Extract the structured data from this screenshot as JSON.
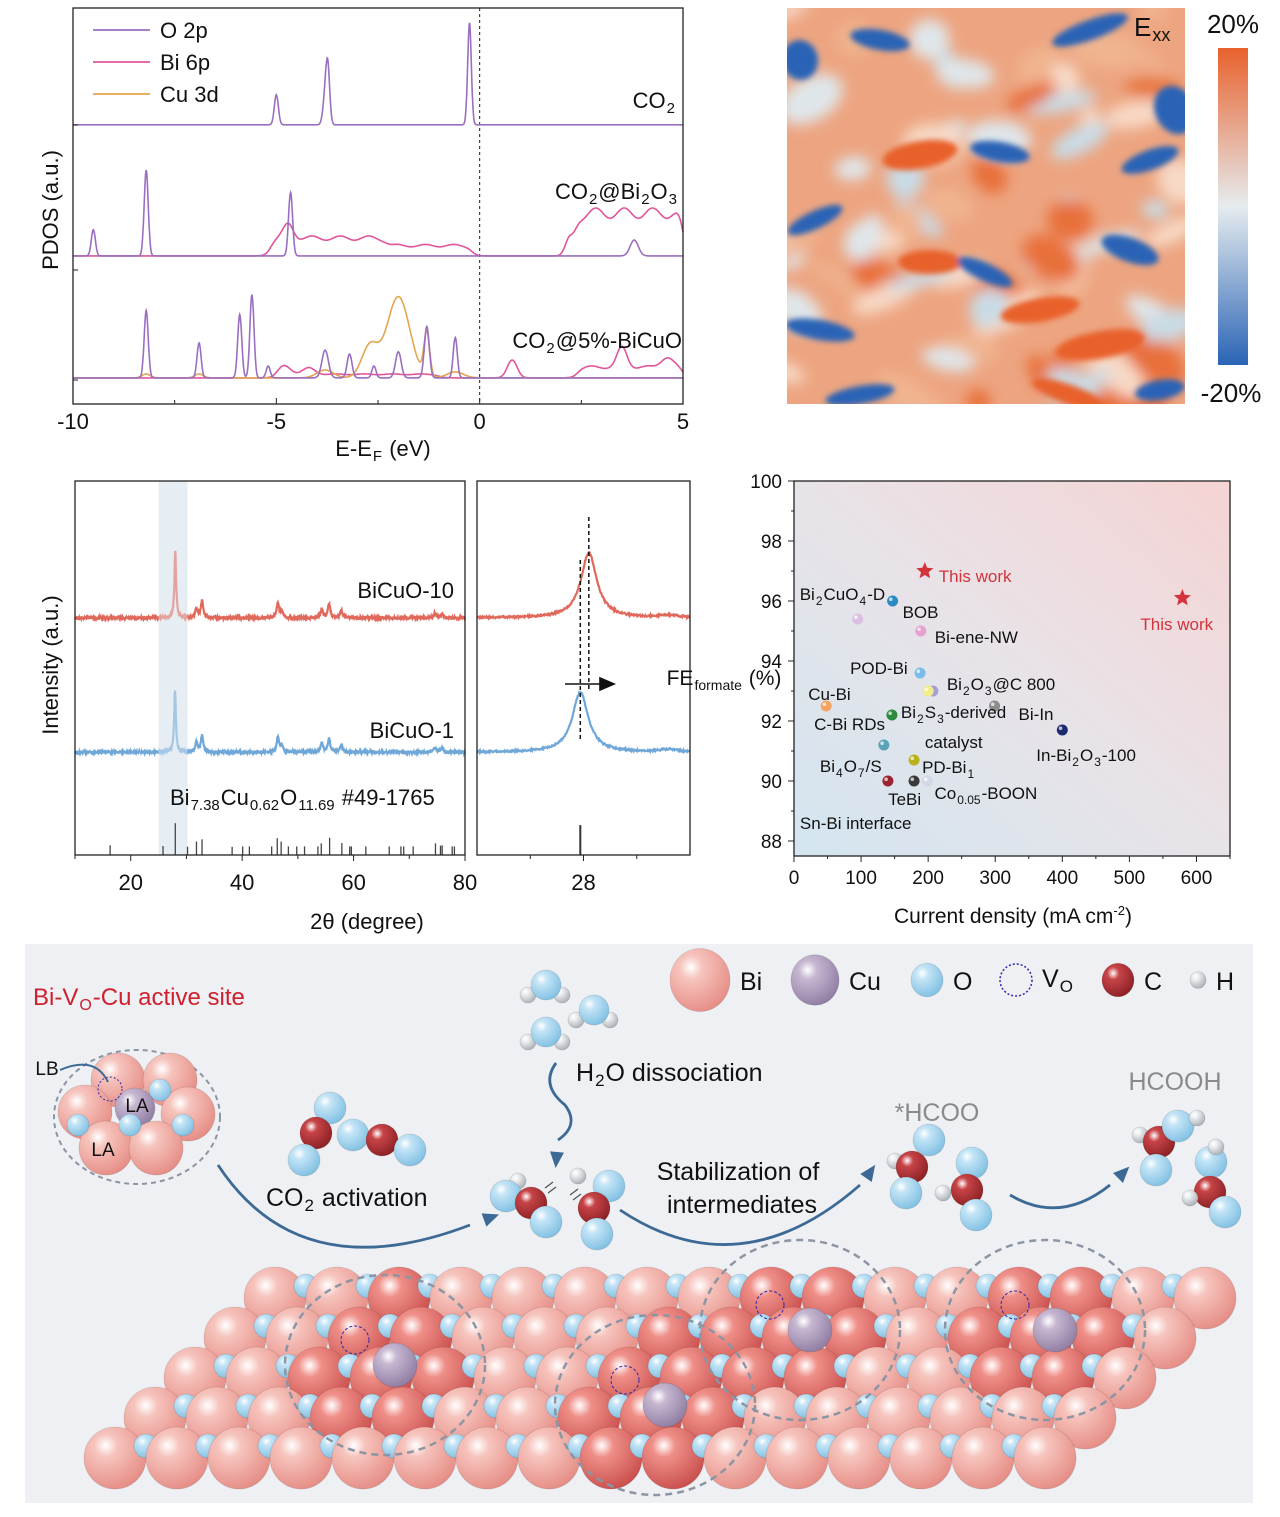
{
  "chart_data": [
    {
      "id": "pdos",
      "type": "line",
      "xlabel": "E-E",
      "xlabel_sub": "F",
      "xlabel_unit": " (eV)",
      "ylabel": "PDOS (a.u.)",
      "xlim": [
        -10,
        5
      ],
      "ylim": [
        0,
        100
      ],
      "xticks": [
        -10,
        -5,
        0,
        5
      ],
      "fermi_line_at": 0,
      "legend_position": "top-left",
      "legend": [
        {
          "name": "O 2p",
          "color": "#9b6fc0"
        },
        {
          "name": "Bi 6p",
          "color": "#e0569a"
        },
        {
          "name": "Cu 3d",
          "color": "#e3a64f"
        }
      ],
      "panels": [
        {
          "label": "CO",
          "label_parts": [
            "CO",
            "2"
          ],
          "offset": 70.5,
          "series": [
            {
              "name": "O 2p",
              "peaks": [
                [
                  -5.0,
                  7.6,
                  0.05
                ],
                [
                  -3.82,
                  4.3,
                  0.05
                ],
                [
                  -3.74,
                  15.6,
                  0.05
                ],
                [
                  -0.25,
                  25.8,
                  0.045
                ]
              ],
              "bands": []
            }
          ]
        },
        {
          "label": "CO2@Bi2O3",
          "label_parts": [
            "CO",
            "2",
            "@Bi",
            "2",
            "O",
            "3"
          ],
          "offset": 37.4,
          "series": [
            {
              "name": "Bi 6p",
              "peaks": [
                [
                  -4.7,
                  3.5,
                  0.12
                ],
                [
                  2.2,
                  4,
                  0.1
                ]
              ],
              "bands": [
                [
                  -5.15,
                  -2.3,
                  4.5
                ],
                [
                  -2.3,
                  -0.2,
                  2.6
                ],
                [
                  2.35,
                  5,
                  10.8
                ]
              ]
            },
            {
              "name": "O 2p",
              "peaks": [
                [
                  -9.5,
                  6.6,
                  0.05
                ],
                [
                  -8.2,
                  21.7,
                  0.05
                ],
                [
                  -4.65,
                  16,
                  0.05
                ],
                [
                  3.8,
                  4,
                  0.1
                ]
              ],
              "bands": []
            }
          ]
        },
        {
          "label": "CO2@5%-BiCuO",
          "label_parts": [
            "CO",
            "2",
            "@5%-BiCuO"
          ],
          "offset": 6.6,
          "series": [
            {
              "name": "Bi 6p",
              "peaks": [
                [
                  -4.8,
                  2.2,
                  0.15
                ],
                [
                  -4.2,
                  1.6,
                  0.15
                ],
                [
                  0.8,
                  4.5,
                  0.12
                ],
                [
                  3.5,
                  5,
                  0.12
                ],
                [
                  4.6,
                  2.5,
                  0.15
                ]
              ],
              "bands": [
                [
                  -5,
                  -1,
                  0.9
                ],
                [
                  2.4,
                  5,
                  2.7
                ]
              ]
            },
            {
              "name": "Cu 3d",
              "peaks": [
                [
                  -2.0,
                  20.5,
                  0.28
                ],
                [
                  -2.7,
                  8,
                  0.2
                ],
                [
                  -1.3,
                  11,
                  0.07
                ],
                [
                  -3.8,
                  2,
                  0.2
                ],
                [
                  -8.2,
                  1,
                  0.1
                ],
                [
                  -6.9,
                  1,
                  0.1
                ],
                [
                  -0.6,
                  1.5,
                  0.2
                ]
              ],
              "bands": []
            },
            {
              "name": "O 2p",
              "peaks": [
                [
                  -8.2,
                  17,
                  0.05
                ],
                [
                  -6.9,
                  8.8,
                  0.05
                ],
                [
                  -5.9,
                  16,
                  0.05
                ],
                [
                  -5.6,
                  21,
                  0.05
                ],
                [
                  -5.2,
                  3,
                  0.05
                ],
                [
                  -3.8,
                  7,
                  0.08
                ],
                [
                  -3.2,
                  6,
                  0.06
                ],
                [
                  -2.6,
                  3,
                  0.05
                ],
                [
                  -2.0,
                  6.6,
                  0.07
                ],
                [
                  -1.3,
                  13,
                  0.06
                ],
                [
                  -0.6,
                  10.2,
                  0.05
                ]
              ],
              "bands": []
            }
          ]
        }
      ]
    },
    {
      "id": "strain-map",
      "type": "heatmap",
      "label": "E",
      "label_sub": "xx",
      "colorbar": {
        "min_label": "-20%",
        "max_label": "20%",
        "min_color": "#2a64b5",
        "mid_color": "#e6ecef",
        "max_color": "#e8612c"
      }
    },
    {
      "id": "xrd",
      "type": "line",
      "xlabel": "2θ (degree)",
      "ylabel": "Intensity (a.u.)",
      "xlim": [
        10,
        80
      ],
      "ylim": [
        0,
        100
      ],
      "xticks": [
        20,
        40,
        60,
        80
      ],
      "highlight_range": [
        25,
        30.2
      ],
      "series": [
        {
          "name": "BiCuO-10",
          "color": "#e0695b",
          "offset": 63.4,
          "peaks": [
            [
              28.0,
              17.9
            ],
            [
              31.8,
              2.6
            ],
            [
              32.8,
              4.5
            ],
            [
              46.4,
              4
            ],
            [
              47.1,
              1.8
            ],
            [
              54.3,
              2.4
            ],
            [
              55.6,
              3.8
            ],
            [
              57.8,
              2
            ],
            [
              74.6,
              1.3
            ],
            [
              75.9,
              1
            ]
          ]
        },
        {
          "name": "BiCuO-1",
          "color": "#6fa8d8",
          "offset": 27.5,
          "peaks": [
            [
              27.95,
              16.6
            ],
            [
              31.8,
              2.6
            ],
            [
              32.8,
              4.5
            ],
            [
              46.4,
              4
            ],
            [
              47.1,
              1.8
            ],
            [
              54.3,
              2.4
            ],
            [
              55.6,
              3.8
            ],
            [
              57.8,
              2
            ],
            [
              74.6,
              1.3
            ],
            [
              75.9,
              1
            ]
          ]
        }
      ],
      "reference": {
        "label_parts": [
          "Bi",
          "7.38",
          "Cu",
          "0.62",
          "O",
          "11.69",
          " #49-1765"
        ],
        "sticks": [
          [
            16.3,
            2.6
          ],
          [
            25.8,
            2.4
          ],
          [
            28.0,
            8.5
          ],
          [
            30.2,
            2.2
          ],
          [
            31.8,
            3.6
          ],
          [
            32.8,
            4.2
          ],
          [
            38.2,
            2.2
          ],
          [
            40.1,
            2.3
          ],
          [
            41.3,
            2.3
          ],
          [
            45.3,
            2.3
          ],
          [
            46.3,
            4.5
          ],
          [
            47.0,
            3.6
          ],
          [
            48.3,
            2.3
          ],
          [
            49.8,
            2.3
          ],
          [
            51.2,
            2.3
          ],
          [
            53.6,
            2.3
          ],
          [
            54.2,
            3.1
          ],
          [
            55.7,
            4.6
          ],
          [
            57.9,
            3.2
          ],
          [
            59.3,
            2.3
          ],
          [
            59.6,
            2.3
          ],
          [
            62.2,
            2.3
          ],
          [
            66.4,
            2.3
          ],
          [
            68.5,
            2.3
          ],
          [
            69.0,
            2.3
          ],
          [
            70.7,
            2.3
          ],
          [
            74.7,
            3.1
          ],
          [
            75.6,
            2.5
          ],
          [
            75.9,
            2.6
          ],
          [
            77.7,
            2.3
          ],
          [
            78.1,
            2.3
          ]
        ]
      }
    },
    {
      "id": "xrd-zoom",
      "type": "line",
      "xlim": [
        27,
        29
      ],
      "ylim": [
        0,
        100
      ],
      "xticks": [
        28
      ],
      "series": [
        {
          "name": "BiCuO-10",
          "peak": [
            28.05,
            17.4
          ]
        },
        {
          "name": "BiCuO-1",
          "peak": [
            27.97,
            16
          ]
        }
      ],
      "dashed_lines": [
        28.05,
        27.97
      ],
      "reference_stick": [
        27.97,
        8
      ],
      "shift_arrow": "right"
    },
    {
      "id": "fe-vs-j",
      "type": "scatter",
      "xlabel": "Current density (mA cm",
      "xlabel_sup": "-2",
      "xlabel_end": ")",
      "ylabel": "FE",
      "ylabel_sub": "formate",
      "ylabel_end": " (%)",
      "xlim": [
        0,
        650
      ],
      "ylim": [
        87.5,
        100
      ],
      "xticks": [
        0,
        100,
        200,
        300,
        400,
        500,
        600
      ],
      "yticks": [
        88,
        90,
        92,
        94,
        96,
        98,
        100
      ],
      "points": [
        {
          "label_parts": [
            "This work"
          ],
          "x": 195,
          "y": 97.0,
          "color": "#d2343c",
          "marker": "star"
        },
        {
          "label_parts": [
            "This work"
          ],
          "x": 579,
          "y": 96.1,
          "color": "#d2343c",
          "marker": "star"
        },
        {
          "label_parts": [
            "Bi",
            "2",
            "CuO",
            "4",
            "-D"
          ],
          "x": 95,
          "y": 95.4,
          "color": "#dcc0e2"
        },
        {
          "label_parts": [
            "BOB"
          ],
          "x": 147,
          "y": 96.0,
          "color": "#2a8ac4"
        },
        {
          "label_parts": [
            "Bi-ene-NW"
          ],
          "x": 189,
          "y": 95.0,
          "color": "#e7a1cf"
        },
        {
          "label_parts": [
            "POD-Bi"
          ],
          "x": 188,
          "y": 93.6,
          "color": "#7bbde8"
        },
        {
          "label_parts": [
            "Bi",
            "2",
            "O",
            "3",
            "@C 800"
          ],
          "x": 207,
          "y": 93.0,
          "color": "#a59ed8"
        },
        {
          "label_parts": [
            "Cu-Bi"
          ],
          "x": 48,
          "y": 92.5,
          "color": "#f2a460"
        },
        {
          "label_parts": [
            "Bi-In"
          ],
          "x": 299,
          "y": 92.5,
          "color": "#8c8c8c"
        },
        {
          "label_parts": [
            "Bi",
            "2",
            "S",
            "3",
            "-derived catalyst"
          ],
          "x": 146,
          "y": 92.2,
          "color": "#2e8a3c"
        },
        {
          "label_parts": [
            "In-Bi",
            "2",
            "O",
            "3",
            "-100"
          ],
          "x": 400,
          "y": 91.7,
          "color": "#1c2a6e"
        },
        {
          "label_parts": [
            "C-Bi RDs"
          ],
          "x": 200,
          "y": 93.0,
          "color": "#f0ec8a"
        },
        {
          "label_parts": [
            "Bi",
            "4",
            "O",
            "7",
            "/S"
          ],
          "x": 134,
          "y": 91.2,
          "color": "#5aa3b8"
        },
        {
          "label_parts": [
            "PD-Bi",
            "1"
          ],
          "x": 179,
          "y": 90.7,
          "color": "#b9b21c"
        },
        {
          "label_parts": [
            "TeBi"
          ],
          "x": 179,
          "y": 90.0,
          "color": "#3a3a3a"
        },
        {
          "label_parts": [
            "Sn-Bi interface"
          ],
          "x": 140,
          "y": 90.0,
          "color": "#9a2530"
        },
        {
          "label_parts": [
            "Co",
            "0.05",
            "-BOON"
          ],
          "x": 199,
          "y": 90.0,
          "color": "#d3d8e6"
        }
      ]
    }
  ],
  "schematic": {
    "title_parts": [
      "Bi-V",
      "O",
      "-Cu active site"
    ],
    "title_color": "#d0202e",
    "legend": [
      {
        "name": "Bi",
        "color": "#f2b2ab"
      },
      {
        "name": "Cu",
        "color": "#b9a8c6"
      },
      {
        "name": "O",
        "color": "#a8d6ef"
      },
      {
        "name": "V",
        "sub": "O",
        "color": "#2b2bb0"
      },
      {
        "name": "C",
        "color": "#b5363a"
      },
      {
        "name": "H",
        "color": "#d6dade"
      }
    ],
    "site_labels": [
      "LB",
      "LA",
      "LA"
    ],
    "steps": {
      "h2o_parts": [
        "H",
        "2",
        "O dissociation"
      ],
      "co2_parts": [
        "CO",
        "2",
        " activation"
      ],
      "stab_line1": "Stabilization of",
      "stab_line2": "intermediates",
      "hcoo": "*HCOO",
      "hcooh": "HCOOH"
    }
  }
}
